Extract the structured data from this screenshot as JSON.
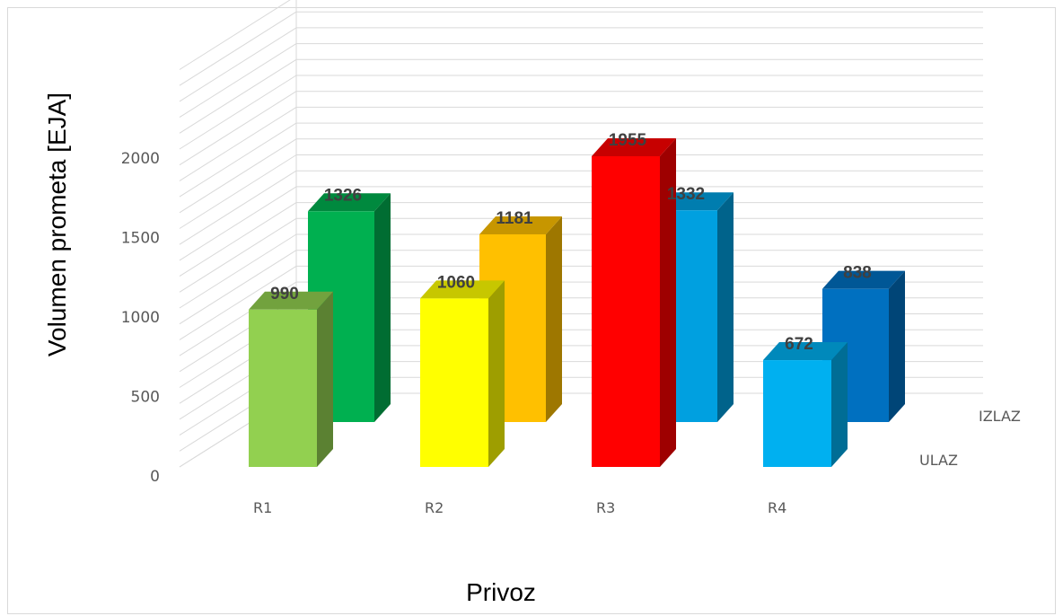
{
  "chart_data": {
    "type": "bar",
    "categories": [
      "R1",
      "R2",
      "R3",
      "R4"
    ],
    "series": [
      {
        "name": "ULAZ",
        "values": [
          990,
          1060,
          1955,
          672
        ],
        "colors": [
          "#92d050",
          "#ffff00",
          "#ff0000",
          "#00b0f0"
        ]
      },
      {
        "name": "IZLAZ",
        "values": [
          1326,
          1181,
          1332,
          838
        ],
        "colors": [
          "#00b050",
          "#ffc000",
          "#00a0e0",
          "#0070c0"
        ]
      }
    ],
    "y_ticks": [
      "0",
      "500",
      "1000",
      "1500",
      "2000"
    ],
    "ylim": [
      0,
      2500
    ],
    "xlabel": "Privoz",
    "ylabel": "Volumen prometa [EJA]",
    "grid": true,
    "style": "3d-clustered-column"
  }
}
